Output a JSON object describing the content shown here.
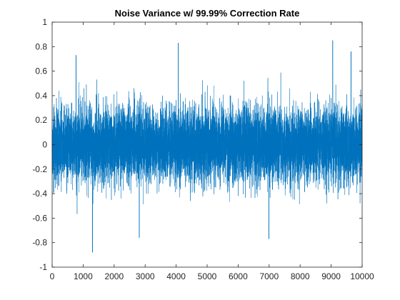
{
  "chart_data": {
    "type": "line",
    "title": "Noise Variance w/ 99.99% Correction Rate",
    "xlabel": "",
    "ylabel": "",
    "xlim": [
      0,
      10000
    ],
    "ylim": [
      -1,
      1
    ],
    "x_ticks": [
      0,
      1000,
      2000,
      3000,
      4000,
      5000,
      6000,
      7000,
      8000,
      9000,
      10000
    ],
    "x_tick_labels": [
      "0",
      "1000",
      "2000",
      "3000",
      "4000",
      "5000",
      "6000",
      "7000",
      "8000",
      "9000",
      "10000"
    ],
    "y_ticks": [
      -1,
      -0.8,
      -0.6,
      -0.4,
      -0.2,
      0,
      0.2,
      0.4,
      0.6,
      0.8,
      1
    ],
    "y_tick_labels": [
      "-1",
      "-0.8",
      "-0.6",
      "-0.4",
      "-0.2",
      "0",
      "0.2",
      "0.4",
      "0.6",
      "0.8",
      "1"
    ],
    "grid": false,
    "legend": "none",
    "series": [
      {
        "color": "#0072BD",
        "n_points": 10000,
        "mean": 0,
        "std": 0.15,
        "peaks": [
          {
            "x": 4070,
            "y": 0.83
          },
          {
            "x": 9050,
            "y": 0.85
          },
          {
            "x": 1300,
            "y": -0.88
          },
          {
            "x": 2810,
            "y": -0.76
          },
          {
            "x": 6990,
            "y": -0.77
          },
          {
            "x": 9640,
            "y": 0.76
          },
          {
            "x": 770,
            "y": 0.73
          }
        ]
      }
    ]
  }
}
